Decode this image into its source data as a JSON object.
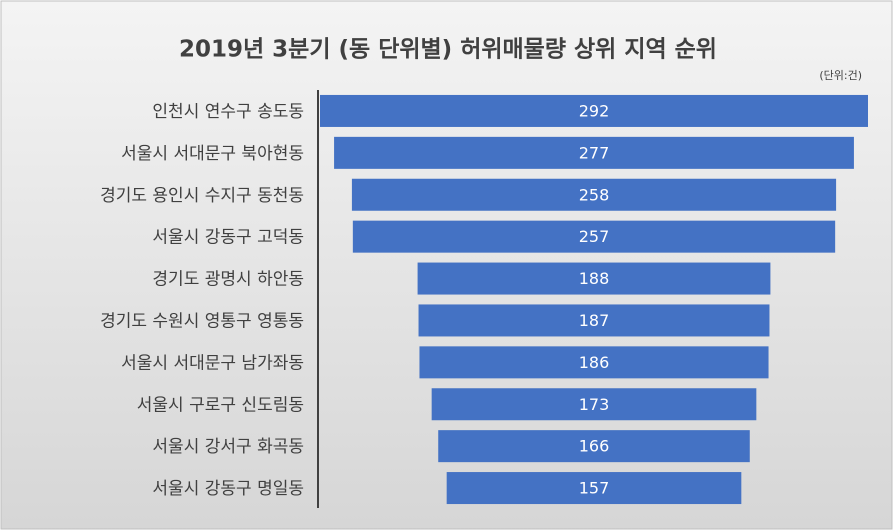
{
  "chart_data": {
    "type": "funnel",
    "title": "2019년 3분기 (동 단위별) 허위매물량 상위 지역 순위",
    "unit_label": "(단위:건)",
    "categories": [
      "인천시 연수구 송도동",
      "서울시 서대문구 북아현동",
      "경기도 용인시 수지구 동천동",
      "서울시 강동구 고덕동",
      "경기도 광명시 하안동",
      "경기도 수원시 영통구 영통동",
      "서울시 서대문구 남가좌동",
      "서울시 구로구 신도림동",
      "서울시 강서구 화곡동",
      "서울시 강동구 명일동"
    ],
    "values": [
      292,
      277,
      258,
      257,
      188,
      187,
      186,
      173,
      166,
      157
    ],
    "color": "#4472c4"
  }
}
